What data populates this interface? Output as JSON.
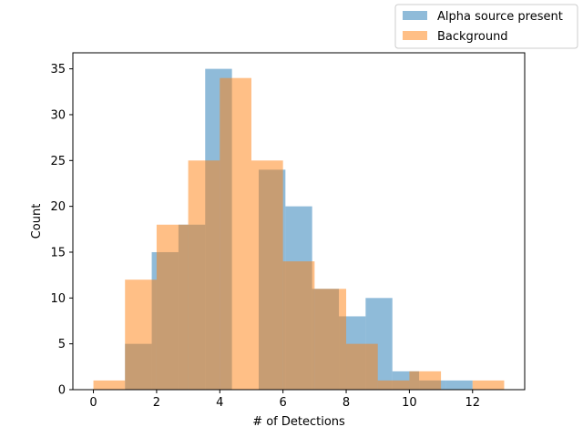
{
  "chart_data": {
    "type": "bar",
    "xlabel": "# of Detections",
    "ylabel": "Count",
    "xlim": [
      -0.65,
      13.65
    ],
    "ylim": [
      0,
      36.75
    ],
    "xticks": [
      "0",
      "2",
      "4",
      "6",
      "8",
      "10",
      "12"
    ],
    "yticks": [
      "0",
      "5",
      "10",
      "15",
      "20",
      "25",
      "30",
      "35"
    ],
    "legend_position": "top-right",
    "series": [
      {
        "name": "Alpha source present",
        "color": "#1f77b4",
        "alpha": 0.5,
        "bin_edges": [
          1.0,
          1.846,
          2.692,
          3.538,
          4.385,
          5.231,
          6.077,
          6.923,
          7.769,
          8.615,
          9.462,
          10.308,
          11.154,
          12.0
        ],
        "values": [
          5,
          15,
          18,
          35,
          0,
          24,
          20,
          11,
          8,
          10,
          2,
          1,
          1
        ]
      },
      {
        "name": "Background",
        "color": "#ff7f0e",
        "alpha": 0.5,
        "bin_edges": [
          0.0,
          1.0,
          2.0,
          3.0,
          4.0,
          5.0,
          6.0,
          7.0,
          8.0,
          9.0,
          10.0,
          11.0,
          12.0,
          13.0
        ],
        "values": [
          1,
          12,
          18,
          25,
          34,
          25,
          14,
          11,
          5,
          1,
          2,
          0,
          1
        ]
      }
    ]
  }
}
